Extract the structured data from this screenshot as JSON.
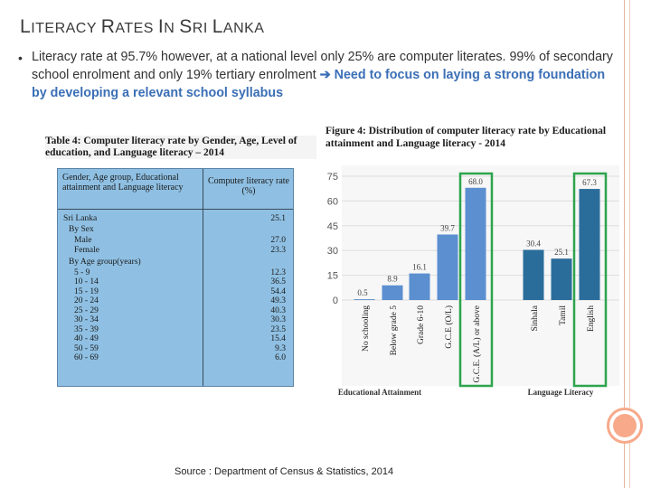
{
  "slide": {
    "title_parts": [
      {
        "text": "L",
        "size": "big"
      },
      {
        "text": "ITERACY ",
        "size": "small"
      },
      {
        "text": "R",
        "size": "big"
      },
      {
        "text": "ATES ",
        "size": "small"
      },
      {
        "text": "I",
        "size": "big"
      },
      {
        "text": "N ",
        "size": "small"
      },
      {
        "text": "S",
        "size": "big"
      },
      {
        "text": "RI ",
        "size": "small"
      },
      {
        "text": "L",
        "size": "big"
      },
      {
        "text": "ANKA",
        "size": "small"
      }
    ],
    "bullet_marker": "•",
    "bullet_text": "Literacy rate at 95.7% however, at a national level only 25% are computer literates. 99% of secondary school enrolment and only 19% tertiary enrolment ",
    "bullet_arrow": "➔",
    "bullet_highlight": "Need to focus on laying a strong foundation by developing a relevant school syllabus",
    "accent_color": "#3b6fb6",
    "source": "Source : Department of Census & Statistics, 2014"
  },
  "table": {
    "caption": "Table 4: Computer literacy rate by Gender, Age, Level of education, and Language literacy – 2014",
    "header_col1": "Gender, Age group, Educational attainment and Language literacy",
    "header_col2": "Computer literacy rate (%)",
    "rows": [
      {
        "label": "Sri Lanka",
        "value": "25.1",
        "indent": 0
      },
      {
        "label": "By Sex",
        "value": "",
        "indent": 1
      },
      {
        "label": "Male",
        "value": "27.0",
        "indent": 2
      },
      {
        "label": "Female",
        "value": "23.3",
        "indent": 2
      },
      {
        "label": "By Age group(years)",
        "value": "",
        "indent": 1
      },
      {
        "label": "5 - 9",
        "value": "12.3",
        "indent": 2
      },
      {
        "label": "10 - 14",
        "value": "36.5",
        "indent": 2
      },
      {
        "label": "15 - 19",
        "value": "54.4",
        "indent": 2
      },
      {
        "label": "20 - 24",
        "value": "49.3",
        "indent": 2
      },
      {
        "label": "25 - 29",
        "value": "40.3",
        "indent": 2
      },
      {
        "label": "30 - 34",
        "value": "30.3",
        "indent": 2
      },
      {
        "label": "35 - 39",
        "value": "23.5",
        "indent": 2
      },
      {
        "label": "40 - 49",
        "value": "15.4",
        "indent": 2
      },
      {
        "label": "50 - 59",
        "value": "9.3",
        "indent": 2
      },
      {
        "label": "60 - 69",
        "value": "6.0",
        "indent": 2
      }
    ]
  },
  "chart_data": {
    "type": "bar",
    "title": "Figure 4: Distribution of computer literacy rate by Educational attainment and Language literacy - 2014",
    "categories": [
      "No schooling",
      "Below grade 5",
      "Grade 6-10",
      "G.C.E (O/L)",
      "G.C.E. (A/L) or above",
      "Sinhala",
      "Tamil",
      "English"
    ],
    "values": [
      0.5,
      8.9,
      16.1,
      39.7,
      68.0,
      30.4,
      25.1,
      67.3
    ],
    "value_labels": [
      "0.5",
      "8.9",
      "16.1",
      "39.7",
      "68.0",
      "30.4",
      "25.1",
      "67.3"
    ],
    "groups": [
      {
        "label": "Educational Attainment",
        "count": 5,
        "color": "#5b8fd0"
      },
      {
        "label": "Language Literacy",
        "count": 3,
        "color": "#2b6d9a"
      }
    ],
    "y_ticks": [
      0,
      15,
      30,
      45,
      60,
      75
    ],
    "ylim": [
      0,
      75
    ],
    "grid": true,
    "highlighted": [
      "G.C.E. (A/L) or above",
      "English"
    ],
    "highlight_color": "#2da44e"
  }
}
